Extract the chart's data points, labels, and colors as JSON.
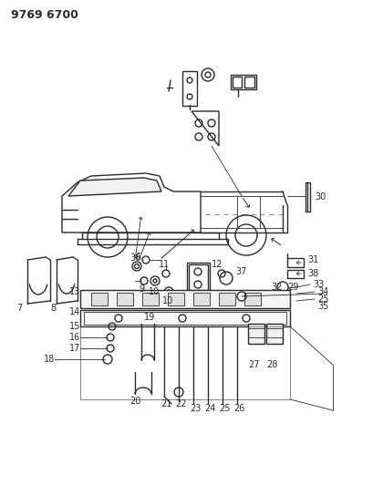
{
  "title": "9769 6700",
  "bg_color": "#ffffff",
  "line_color": "#2a2a2a",
  "fig_width": 4.1,
  "fig_height": 5.33,
  "dpi": 100
}
